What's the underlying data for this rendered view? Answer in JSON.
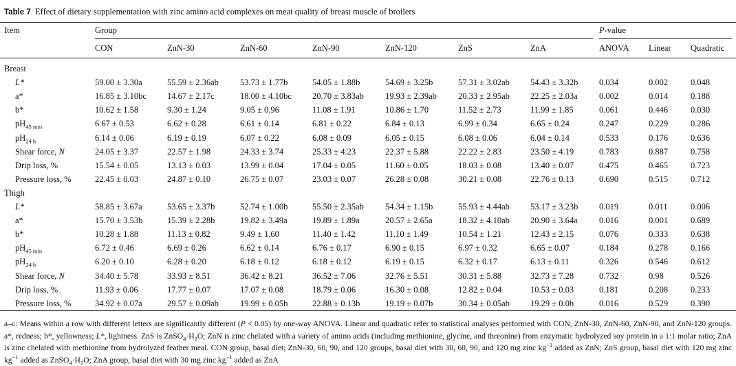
{
  "caption": {
    "label": "Table 7",
    "text": "Effect of dietary supplementation with zinc amino acid complexes on meat quality of breast muscle of broilers"
  },
  "header": {
    "item": "Item",
    "group": "Group",
    "pvalue": [
      {
        "i": "P"
      },
      "-value"
    ],
    "columns": [
      "CON",
      "ZnN-30",
      "ZnN-60",
      "ZnN-90",
      "ZnN-120",
      "ZnS",
      "ZnA",
      "ANOVA",
      "Linear",
      "Quadratic"
    ]
  },
  "sections": [
    {
      "title": "Breast",
      "rows": [
        {
          "label": [
            {
              "i": "L*"
            }
          ],
          "cells": [
            "59.00 ± 3.30a",
            "55.59 ± 2.36ab",
            "53.73 ± 1.77b",
            "54.05 ± 1.88b",
            "54.69 ± 3.25b",
            "57.31 ± 3.02ab",
            "54.43 ± 3.32b",
            "0.034",
            "0.002",
            "0.048"
          ]
        },
        {
          "label": [
            "a*"
          ],
          "cells": [
            "16.85 ± 3.10bc",
            "14.67 ± 2.17c",
            "18.00 ± 4.10bc",
            "20.70 ± 3.83ab",
            "19.93 ± 2.39ab",
            "20.33 ± 2.95ab",
            "22.25 ± 2.03a",
            "0.002",
            "0.014",
            "0.188"
          ]
        },
        {
          "label": [
            "b*"
          ],
          "cells": [
            "10.62 ± 1.58",
            "9.30 ± 1.24",
            "9.05 ± 0.96",
            "11.08 ± 1.91",
            "10.86 ± 1.70",
            "11.52 ± 2.73",
            "11.99 ± 1.85",
            "0.061",
            "0.446",
            "0.030"
          ]
        },
        {
          "label": [
            "pH",
            {
              "sub": "45 min"
            }
          ],
          "cells": [
            "6.67 ± 0.53",
            "6.62 ± 0.28",
            "6.61 ± 0.14",
            "6.81 ± 0.22",
            "6.84 ± 0.13",
            "6.99 ± 0.34",
            "6.65 ± 0.24",
            "0.247",
            "0.229",
            "0.286"
          ]
        },
        {
          "label": [
            "pH",
            {
              "sub": "24 h"
            }
          ],
          "cells": [
            "6.14 ± 0.06",
            "6.19 ± 0.19",
            "6.07 ± 0.22",
            "6.08 ± 0.09",
            "6.05 ± 0.15",
            "6.08 ± 0.06",
            "6.04 ± 0.14",
            "0.533",
            "0.176",
            "0.636"
          ]
        },
        {
          "label": [
            "Shear force, ",
            {
              "i": "N"
            }
          ],
          "cells": [
            "24.05 ± 3.37",
            "22.57 ± 1.98",
            "24.33 ± 3.74",
            "25.33 ± 4.23",
            "22.37 ± 5.88",
            "22.22 ± 2.83",
            "23.50 ± 4.19",
            "0.783",
            "0.887",
            "0.758"
          ]
        },
        {
          "label": [
            "Drip loss, %"
          ],
          "cells": [
            "15.54 ± 0.05",
            "13.13 ± 0.03",
            "13.99 ± 0.04",
            "17.04 ± 0.05",
            "11.60 ± 0.05",
            "18.03 ± 0.08",
            "13.40 ± 0.07",
            "0.475",
            "0.465",
            "0.723"
          ]
        },
        {
          "label": [
            "Pressure loss, %"
          ],
          "cells": [
            "22.45 ± 0.03",
            "24.87 ± 0.10",
            "26.75 ± 0.07",
            "23.03 ± 0.07",
            "26.28 ± 0.08",
            "30.21 ± 0.08",
            "22.76 ± 0.13",
            "0.690",
            "0.515",
            "0.712"
          ]
        }
      ]
    },
    {
      "title": "Thigh",
      "rows": [
        {
          "label": [
            {
              "i": "L*"
            }
          ],
          "cells": [
            "58.85 ± 3.67a",
            "53.65 ± 3.37b",
            "52.74 ± 1.00b",
            "55.50 ± 2.35ab",
            "54.34 ± 1.15b",
            "55.93 ± 4.44ab",
            "53.17 ± 3.23b",
            "0.019",
            "0.011",
            "0.006"
          ]
        },
        {
          "label": [
            "a*"
          ],
          "cells": [
            "15.70 ± 3.53b",
            "15.39 ± 2.28b",
            "19.82 ± 3.49a",
            "19.89 ± 1.89a",
            "20.57 ± 2.65a",
            "18.32 ± 4.10ab",
            "20.90 ± 3.64a",
            "0.016",
            "0.001",
            "0.689"
          ]
        },
        {
          "label": [
            "b*"
          ],
          "cells": [
            "10.28 ± 1.88",
            "11.13 ± 0.82",
            "9.49 ± 1.60",
            "11.40 ± 1.42",
            "11.10 ± 1.49",
            "10.54 ± 1.21",
            "12.43 ± 2.15",
            "0.076",
            "0.333",
            "0.638"
          ]
        },
        {
          "label": [
            "pH",
            {
              "sub": "45 min"
            }
          ],
          "cells": [
            "6.72 ± 0.46",
            "6.69 ± 0.26",
            "6.62 ± 0.14",
            "6.76 ± 0.17",
            "6.90 ± 0.15",
            "6.97 ± 0.32",
            "6.65 ± 0.07",
            "0.184",
            "0.278",
            "0.166"
          ]
        },
        {
          "label": [
            "pH",
            {
              "sub": "24 h"
            }
          ],
          "cells": [
            "6.20 ± 0.10",
            "6.28 ± 0.20",
            "6.18 ± 0.12",
            "6.18 ± 0.12",
            "6.19 ± 0.15",
            "6.32 ± 0.17",
            "6.13 ± 0.11",
            "0.326",
            "0.546",
            "0.612"
          ]
        },
        {
          "label": [
            "Shear force, ",
            {
              "i": "N"
            }
          ],
          "cells": [
            "34.40 ± 5.78",
            "33.93 ± 8.51",
            "36.42 ± 8.21",
            "36.52 ± 7.06",
            "32.76 ± 5.51",
            "30.31 ± 5.88",
            "32.73 ± 7.28",
            "0.732",
            "0.98",
            "0.526"
          ]
        },
        {
          "label": [
            "Drip loss, %"
          ],
          "cells": [
            "11.93 ± 0.06",
            "17.77 ± 0.07",
            "17.07 ± 0.08",
            "18.79 ± 0.06",
            "16.30 ± 0.08",
            "12.82 ± 0.04",
            "10.53 ± 0.03",
            "0.181",
            "0.208",
            "0.233"
          ]
        },
        {
          "label": [
            "Pressure loss, %"
          ],
          "cells": [
            "34.92 ± 0.07a",
            "29.57 ± 0.09ab",
            "19.99 ± 0.05b",
            "22.88 ± 0.13b",
            "19.19 ± 0.07b",
            "30.34 ± 0.05ab",
            "19.29 ± 0.0b",
            "0.016",
            "0.529",
            "0.390"
          ]
        }
      ]
    }
  ],
  "footnote": [
    "a–c: Means within a row with different letters are significantly different (",
    {
      "i": "P"
    },
    " < 0.05) by one-way ANOVA. Linear and quadratic refer to statistical analyses performed with CON, ZnN-30, ZnN-60, ZnN-90, and ZnN-120 groups. a*, redness; b*, yellowness; ",
    {
      "i": "L*"
    },
    ", lightness. ZnS is ZnSO",
    {
      "sub": "4"
    },
    "·H",
    {
      "sub": "2"
    },
    "O; ZnN is zinc chelated with a variety of amino acids (including methionine, glycine, and threonine) from enzymatic hydrolyzed soy protein in a 1:1 molar ratio; ZnA is zinc chelated with methionine from hydrolyzed feather meal. CON group, basal diet; ZnN-30, 60, 90, and 120 groups, basal diet with 30, 60, 90, and 120 mg zinc kg",
    {
      "sup": "−1"
    },
    " added as ZnN; ZnS group, basal diet with 120 mg zinc kg",
    {
      "sup": "−1"
    },
    " added as ZnSO",
    {
      "sub": "4"
    },
    "·H",
    {
      "sub": "2"
    },
    "O; ZnA group, basal diet with 30 mg zinc kg",
    {
      "sup": "−1"
    },
    " added as ZnA"
  ]
}
